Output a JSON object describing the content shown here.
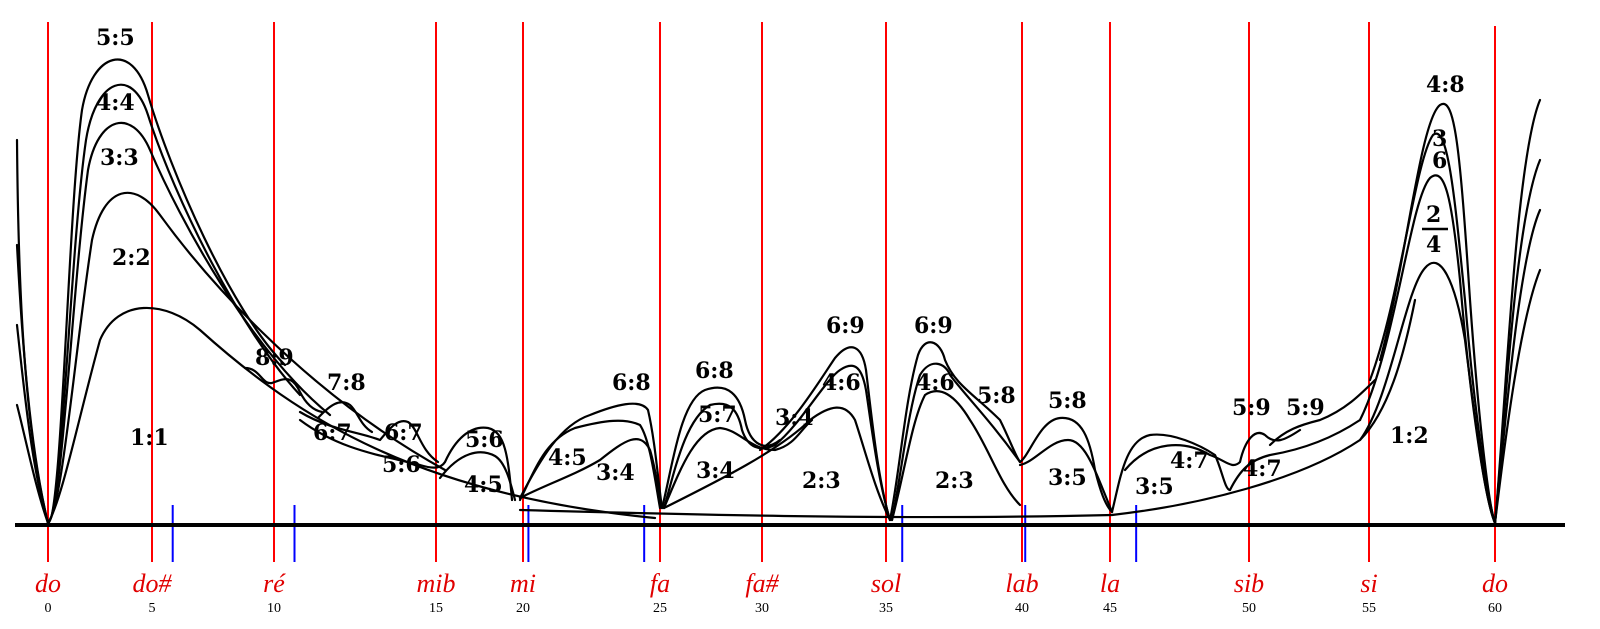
{
  "colors": {
    "red": "#ff0000",
    "blue": "#0000ff",
    "ink": "#000000"
  },
  "notes": [
    {
      "name": "do",
      "semitone": 0
    },
    {
      "name": "do#",
      "semitone": 1
    },
    {
      "name": "ré",
      "semitone": 2
    },
    {
      "name": "mib",
      "semitone": 3
    },
    {
      "name": "mi",
      "semitone": 4
    },
    {
      "name": "fa",
      "semitone": 5
    },
    {
      "name": "fa#",
      "semitone": 6
    },
    {
      "name": "sol",
      "semitone": 7
    },
    {
      "name": "lab",
      "semitone": 8
    },
    {
      "name": "la",
      "semitone": 9
    },
    {
      "name": "sib",
      "semitone": 10
    },
    {
      "name": "si",
      "semitone": 11
    },
    {
      "name": "do",
      "semitone": 12
    }
  ],
  "ticks": [
    "0",
    "5",
    "10",
    "15",
    "20",
    "25",
    "30",
    "35",
    "40",
    "45",
    "50",
    "55",
    "60"
  ],
  "blue_marks": [
    5.15,
    10.2,
    19.9,
    24.7,
    35.4,
    40.5,
    45.1
  ],
  "ratios": [
    "5:5",
    "4:4",
    "3:3",
    "2:2",
    "1:1",
    "8:9",
    "7:8",
    "6:7",
    "6:7",
    "5:6",
    "5:6",
    "4:5",
    "4:5",
    "3:4",
    "6:8",
    "6:8",
    "5:7",
    "3:4",
    "3:4",
    "6:9",
    "4:6",
    "2:3",
    "6:9",
    "4:6",
    "5:8",
    "2:3",
    "5:8",
    "3:5",
    "3:5",
    "4:7",
    "4:7",
    "5:9",
    "5:9",
    "1:2",
    "4:8",
    "3",
    "6",
    "2",
    "4"
  ]
}
